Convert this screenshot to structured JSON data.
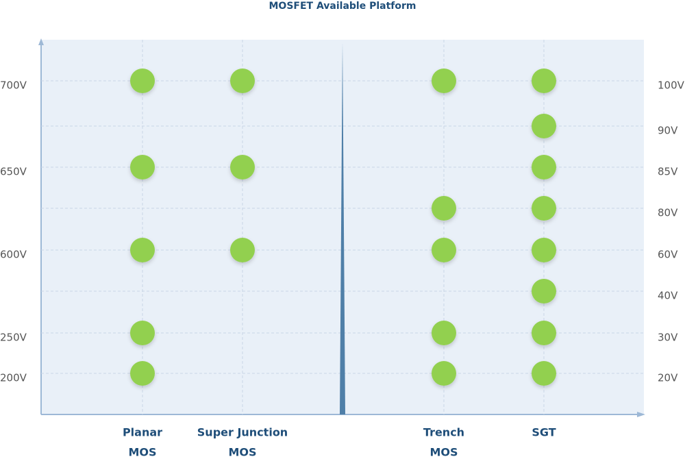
{
  "title": "MOSFET Available Platform",
  "left_axis": [
    "700V",
    null,
    "650V",
    null,
    "600V",
    null,
    "250V",
    "200V"
  ],
  "right_axis": [
    "100V",
    "90V",
    "85V",
    "80V",
    "60V",
    "40V",
    "30V",
    "20V"
  ],
  "columns": [
    {
      "label": [
        "Planar",
        "MOS"
      ],
      "side": "left",
      "voltages": [
        "700V",
        "650V",
        "600V",
        "250V",
        "200V"
      ]
    },
    {
      "label": [
        "Super Junction",
        "MOS"
      ],
      "side": "left",
      "voltages": [
        "700V",
        "650V",
        "600V"
      ]
    },
    {
      "label": [
        "Trench",
        "MOS"
      ],
      "side": "right",
      "voltages": [
        "100V",
        "80V",
        "60V",
        "30V",
        "20V"
      ]
    },
    {
      "label": [
        "SGT"
      ],
      "side": "right",
      "voltages": [
        "100V",
        "90V",
        "85V",
        "80V",
        "60V",
        "40V",
        "30V",
        "20V"
      ]
    }
  ]
}
